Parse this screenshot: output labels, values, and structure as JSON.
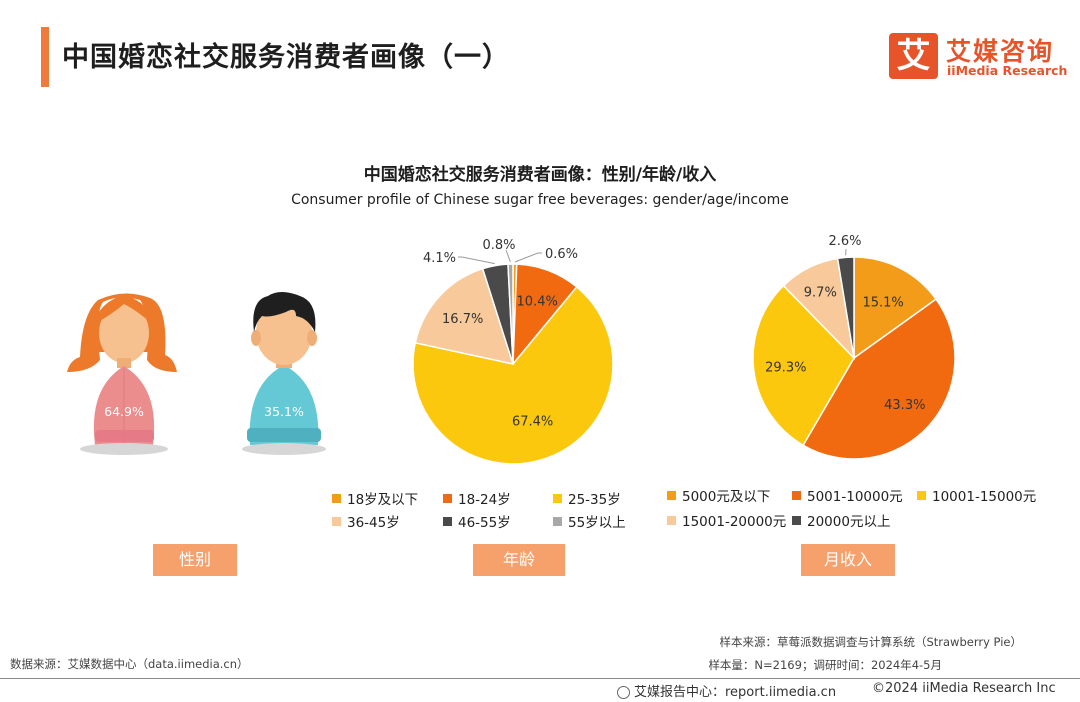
{
  "header": {
    "title": "中国婚恋社交服务消费者画像（一）",
    "logo_mark": "艾",
    "logo_cn": "艾媒咨询",
    "logo_en": "iiMedia Research"
  },
  "chart_data": [
    {
      "type": "pictogram",
      "title": "中国婚恋社交服务消费者画像：性别/年龄/收入",
      "subtitle": "Consumer profile of Chinese sugar free beverages: gender/age/income",
      "category_label": "性别",
      "values": [
        64.9,
        35.1
      ],
      "value_labels": [
        "64.9%",
        "35.1%"
      ],
      "icons": [
        "female-figure-icon",
        "male-figure-icon"
      ],
      "colors": [
        "#eb8d8d",
        "#65c8d5"
      ]
    },
    {
      "type": "pie",
      "category_label": "年龄",
      "categories": [
        "18岁及以下",
        "18-24岁",
        "25-35岁",
        "36-45岁",
        "46-55岁",
        "55岁以上"
      ],
      "values": [
        0.6,
        10.4,
        67.4,
        16.7,
        4.1,
        0.8
      ],
      "value_labels": [
        "0.6%",
        "10.4%",
        "67.4%",
        "16.7%",
        "4.1%",
        "0.8%"
      ],
      "colors": [
        "#f39c19",
        "#f26a10",
        "#fbc80e",
        "#f8c99a",
        "#4a4a4a",
        "#a8a8a8"
      ],
      "legend": "bottom"
    },
    {
      "type": "pie",
      "category_label": "月收入",
      "categories": [
        "5000元及以下",
        "5001-10000元",
        "10001-15000元",
        "15001-20000元",
        "20000元以上"
      ],
      "values": [
        15.1,
        43.3,
        29.3,
        9.7,
        2.6
      ],
      "value_labels": [
        "15.1%",
        "43.3%",
        "29.3%",
        "9.7%",
        "2.6%"
      ],
      "colors": [
        "#f39c19",
        "#f26a10",
        "#fbc80e",
        "#f8c99a",
        "#4a4a4a"
      ],
      "legend": "bottom"
    }
  ],
  "sources": {
    "sample_source": "样本来源：草莓派数据调查与计算系统（Strawberry Pie）",
    "sample_info": "样本量：N=2169；调研时间：2024年4-5月",
    "data_source": "数据来源：艾媒数据中心（data.iimedia.cn）"
  },
  "footer": {
    "report": "艾媒报告中心：report.iimedia.cn",
    "copyright": "©2024  iiMedia Research Inc"
  }
}
